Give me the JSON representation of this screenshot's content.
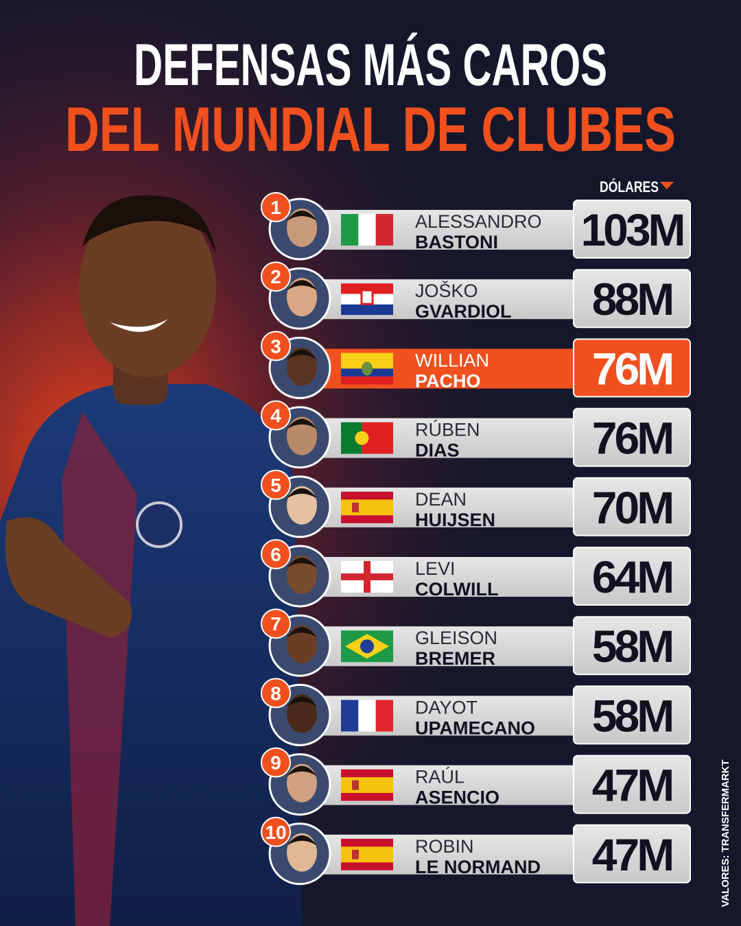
{
  "header": {
    "title_line1": "DEFENSAS MÁS CAROS",
    "title_line2": "DEL MUNDIAL DE CLUBES",
    "column_label": "DÓLARES"
  },
  "rows": [
    {
      "rank": "1",
      "first_name": "ALESSANDRO",
      "last_name": "BASTONI",
      "value": "103M"
    },
    {
      "rank": "2",
      "first_name": "JOŠKO",
      "last_name": "GVARDIOL",
      "value": "88M"
    },
    {
      "rank": "3",
      "first_name": "WILLIAN",
      "last_name": "PACHO",
      "value": "76M",
      "highlighted": true
    },
    {
      "rank": "4",
      "first_name": "RÚBEN",
      "last_name": "DIAS",
      "value": "76M"
    },
    {
      "rank": "5",
      "first_name": "DEAN",
      "last_name": "HUIJSEN",
      "value": "70M"
    },
    {
      "rank": "6",
      "first_name": "LEVI",
      "last_name": "COLWILL",
      "value": "64M"
    },
    {
      "rank": "7",
      "first_name": "GLEISON",
      "last_name": "BREMER",
      "value": "58M"
    },
    {
      "rank": "8",
      "first_name": "DAYOT",
      "last_name": "UPAMECANO",
      "value": "58M"
    },
    {
      "rank": "9",
      "first_name": "RAÚL",
      "last_name": "ASENCIO",
      "value": "47M"
    },
    {
      "rank": "10",
      "first_name": "ROBIN",
      "last_name": "LE NORMAND",
      "value": "47M"
    }
  ],
  "footer": {
    "source": "VALORES: TRANSFERMARKT"
  }
}
